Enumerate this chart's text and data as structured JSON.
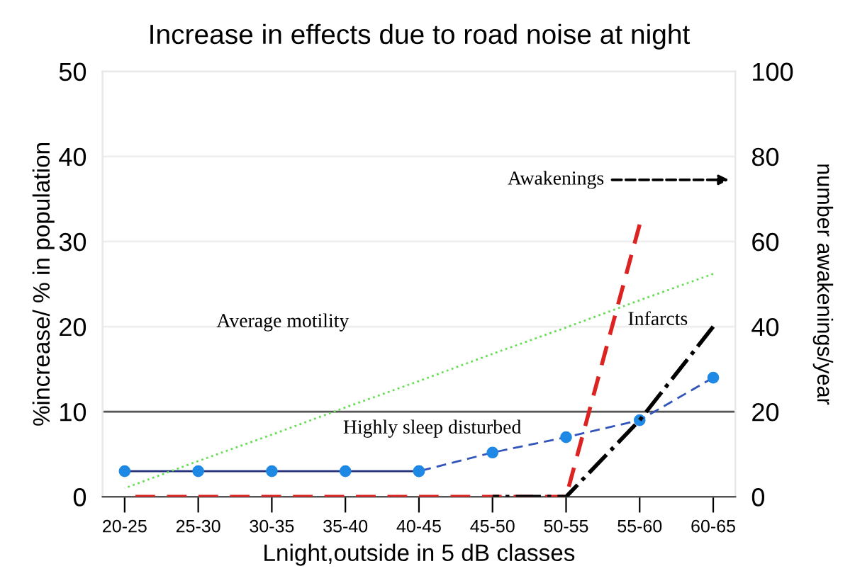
{
  "chart_data": {
    "type": "line",
    "title": "Increase in effects due to road noise at night",
    "xlabel": "Lnight,outside in 5 dB classes",
    "ylabel": "%increase/ % in population",
    "y2label": "number awakenings/year",
    "categories": [
      "20-25",
      "25-30",
      "30-35",
      "35-40",
      "40-45",
      "45-50",
      "50-55",
      "55-60",
      "60-65"
    ],
    "series": [
      {
        "color": "#1f2d7a",
        "values": [
          3,
          3,
          3,
          3,
          3,
          null,
          null,
          null,
          null
        ],
        "marker": "circle",
        "line_style": "solid"
      },
      {
        "color": "#3355bb",
        "values": [
          null,
          null,
          null,
          null,
          3,
          5.2,
          7,
          9,
          14
        ],
        "marker": "circle",
        "line_style": "dashed"
      },
      {
        "color": "#66dd55",
        "values": [
          1,
          4.2,
          7.3,
          10.5,
          13.6,
          16.8,
          19.9,
          23.1,
          26.2
        ],
        "marker": "none",
        "line_style": "dotted"
      },
      {
        "color": "#dd2222",
        "values": [
          0,
          0,
          0,
          0,
          0,
          0,
          0,
          64,
          null
        ],
        "axis": "y2",
        "marker": "none",
        "line_style": "dashed"
      },
      {
        "color": "#000000",
        "values": [
          null,
          null,
          null,
          null,
          null,
          0,
          0,
          18,
          40
        ],
        "axis": "y2",
        "marker": "none",
        "line_style": "dashdot"
      }
    ],
    "ylim": [
      0,
      50
    ],
    "yticks": [
      0,
      10,
      20,
      30,
      40,
      50
    ],
    "y2lim": [
      0,
      100
    ],
    "y2ticks": [
      0,
      20,
      40,
      60,
      80,
      100
    ],
    "ref_lines": [
      {
        "axis": "y",
        "value": 10,
        "color": "#555555"
      }
    ],
    "annotations": [
      "Average motility",
      "Highly sleep disturbed",
      "Awakenings",
      "Infarcts"
    ],
    "grid": "y"
  }
}
